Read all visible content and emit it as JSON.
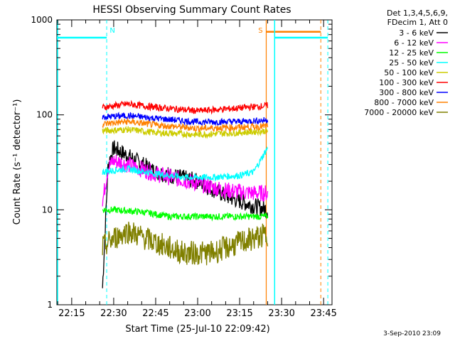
{
  "chart_data": {
    "type": "line",
    "title": "HESSI Observing Summary Count Rates",
    "xlabel": "Start Time (25-Jul-10 22:09:42)",
    "ylabel": "Count Rate (s⁻¹ detector⁻¹)",
    "ylog": true,
    "xlim_minutes": [
      22.15,
      23.48
    ],
    "ylim": [
      1,
      1000
    ],
    "x_ticks": [
      "22:15",
      "22:30",
      "22:45",
      "23:00",
      "23:15",
      "23:30",
      "23:45"
    ],
    "y_ticks": [
      "1",
      "10",
      "100",
      "1000"
    ],
    "legend_header": [
      "Det 1,3,4,5,6,9,",
      "FDecim 1, Att 0"
    ],
    "grid": false,
    "legend_position": "right",
    "series": [
      {
        "name": "3 - 6 keV",
        "color": "#000000",
        "x": [
          "22:26",
          "22:28",
          "22:30",
          "22:35",
          "22:45",
          "23:00",
          "23:10",
          "23:20",
          "23:25"
        ],
        "values": [
          1.5,
          30,
          45,
          37,
          25,
          20,
          14,
          11,
          10
        ]
      },
      {
        "name": "6 - 12 keV",
        "color": "#ff00ff",
        "x": [
          "22:26",
          "22:28",
          "22:30",
          "22:35",
          "22:45",
          "23:00",
          "23:10",
          "23:20",
          "23:25"
        ],
        "values": [
          12,
          28,
          33,
          30,
          24,
          19,
          16,
          15,
          15
        ]
      },
      {
        "name": "12 - 25 keV",
        "color": "#00ff00",
        "x": [
          "22:26",
          "22:30",
          "22:40",
          "22:50",
          "23:00",
          "23:10",
          "23:20",
          "23:25"
        ],
        "values": [
          10,
          10,
          9.5,
          8.5,
          8.5,
          8.5,
          8.5,
          8.5
        ]
      },
      {
        "name": "25 - 50 keV",
        "color": "#00ffff",
        "x": [
          "22:26",
          "22:30",
          "22:35",
          "22:45",
          "22:55",
          "23:05",
          "23:15",
          "23:20",
          "23:25"
        ],
        "values": [
          25,
          26,
          27,
          24,
          22,
          22,
          23,
          25,
          45
        ]
      },
      {
        "name": "50 - 100 keV",
        "color": "#cccc00",
        "x": [
          "22:26",
          "22:35",
          "22:45",
          "23:00",
          "23:15",
          "23:25"
        ],
        "values": [
          68,
          70,
          65,
          62,
          65,
          68
        ]
      },
      {
        "name": "100 - 300 keV",
        "color": "#ff0000",
        "x": [
          "22:26",
          "22:35",
          "22:45",
          "23:00",
          "23:15",
          "23:25"
        ],
        "values": [
          120,
          130,
          120,
          110,
          118,
          125
        ]
      },
      {
        "name": "300 - 800 keV",
        "color": "#0000ff",
        "x": [
          "22:26",
          "22:35",
          "22:45",
          "23:00",
          "23:15",
          "23:25"
        ],
        "values": [
          95,
          98,
          92,
          84,
          85,
          88
        ]
      },
      {
        "name": "800 - 7000 keV",
        "color": "#ff8000",
        "x": [
          "22:26",
          "22:35",
          "22:45",
          "23:00",
          "23:15",
          "23:25"
        ],
        "values": [
          80,
          85,
          78,
          72,
          74,
          76
        ]
      },
      {
        "name": "7000 - 20000 keV",
        "color": "#808000",
        "x": [
          "22:26",
          "22:30",
          "22:35",
          "22:45",
          "22:55",
          "23:05",
          "23:15",
          "23:25"
        ],
        "values": [
          4,
          5,
          6,
          4.5,
          3.5,
          3.5,
          4.5,
          5.5
        ]
      }
    ],
    "annotations": [
      {
        "label": "N",
        "color": "#00ffff",
        "x": "22:27"
      },
      {
        "label": "S",
        "color": "#ff8000",
        "x": "23:25"
      }
    ],
    "night_level": 650,
    "saa_level": 750
  },
  "footer": {
    "date_stamp": "3-Sep-2010 23:09"
  }
}
